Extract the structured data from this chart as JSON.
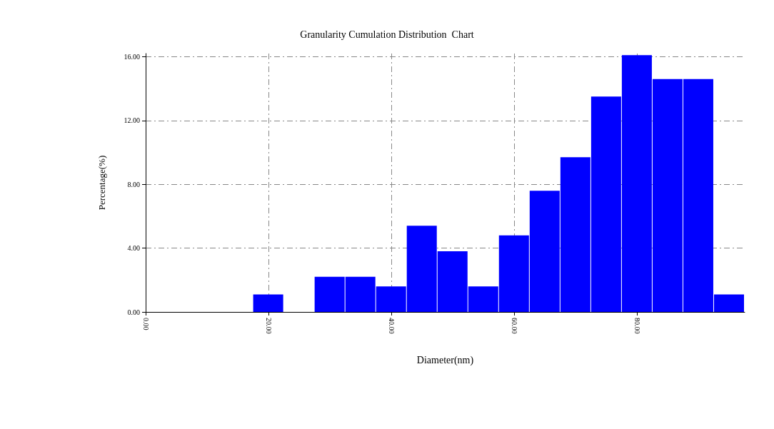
{
  "chart_data": {
    "type": "histogram",
    "title": "Granularity Cumulation Distribution  Chart",
    "xlabel": "Diameter(nm)",
    "ylabel": "Percentage(%)",
    "bins": [
      17.5,
      22.5,
      27.5,
      32.5,
      37.5,
      42.5,
      47.5,
      52.5,
      57.5,
      62.5,
      67.5,
      72.5,
      77.5,
      82.5,
      87.5,
      92.5,
      97.5
    ],
    "values": [
      1.1,
      0,
      2.2,
      2.2,
      1.6,
      5.4,
      3.8,
      1.6,
      4.8,
      7.6,
      9.7,
      13.5,
      16.1,
      14.6,
      14.6,
      1.1
    ],
    "color": "#0000ff",
    "xlim": [
      0,
      97.5
    ],
    "ylim": [
      0,
      16.2
    ],
    "xticks": [
      {
        "value": 0,
        "label": "0.00"
      },
      {
        "value": 20,
        "label": "20.00"
      },
      {
        "value": 40,
        "label": "40.00"
      },
      {
        "value": 60,
        "label": "60.00"
      },
      {
        "value": 80,
        "label": "80.00"
      }
    ],
    "yticks": [
      {
        "value": 0,
        "label": "0.00"
      },
      {
        "value": 4,
        "label": "4.00"
      },
      {
        "value": 8,
        "label": "8.00"
      },
      {
        "value": 12,
        "label": "12.00"
      },
      {
        "value": 16,
        "label": "16.00"
      }
    ],
    "grid": true
  }
}
